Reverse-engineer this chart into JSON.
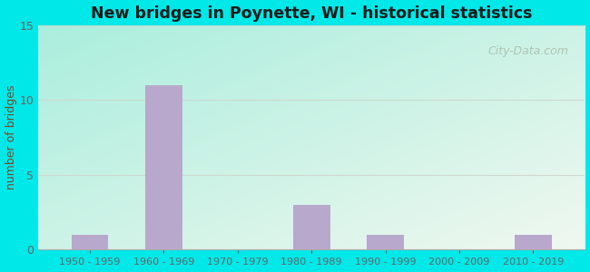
{
  "title": "New bridges in Poynette, WI - historical statistics",
  "categories": [
    "1950 - 1959",
    "1960 - 1969",
    "1970 - 1979",
    "1980 - 1989",
    "1990 - 1999",
    "2000 - 2009",
    "2010 - 2019"
  ],
  "values": [
    1,
    11,
    0,
    3,
    1,
    0,
    1
  ],
  "bar_color": "#b8a8cc",
  "ylabel": "number of bridges",
  "ylim": [
    0,
    15
  ],
  "yticks": [
    0,
    5,
    10,
    15
  ],
  "outer_background": "#00e8e8",
  "title_color": "#1a1a1a",
  "ylabel_color": "#7a4a2a",
  "tick_color": "#666666",
  "grid_color": "#d0d8d0",
  "watermark_text": "City-Data.com",
  "watermark_color": "#aabcaa",
  "bg_topleft": "#aaeedd",
  "bg_bottomright": "#f0f8f0",
  "figsize": [
    6.5,
    3.0
  ],
  "dpi": 100
}
